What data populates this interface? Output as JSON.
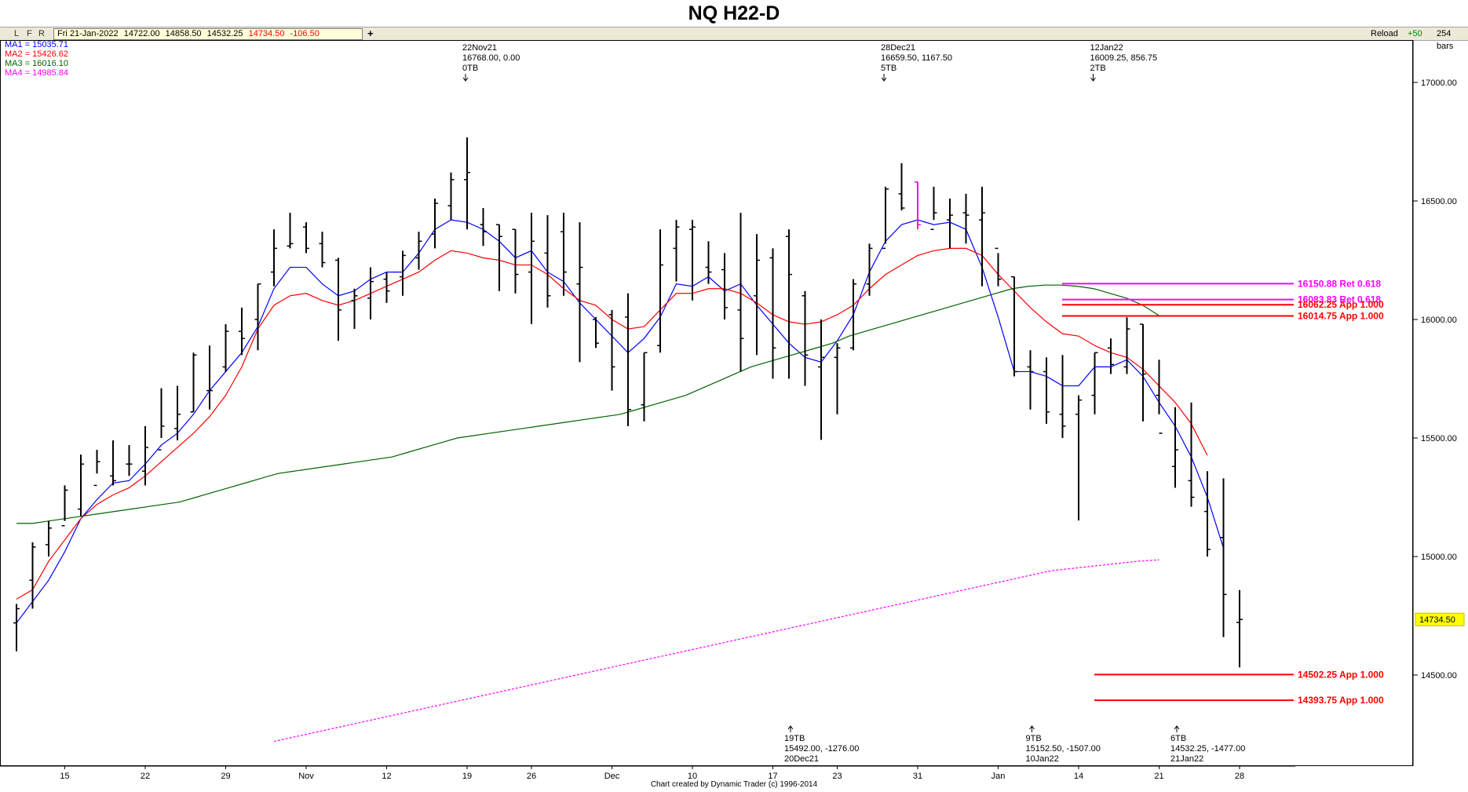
{
  "header": {
    "title": "NQ H22-D"
  },
  "toolbar": {
    "l": "L",
    "f": "F",
    "r": "R",
    "date": "Fri 21-Jan-2022",
    "open": "14722.00",
    "high": "14858.50",
    "low": "14532.25",
    "close": "14734.50",
    "change": "-106.50",
    "add": "+",
    "reload": "Reload",
    "step": "+50",
    "bars": "254 bars"
  },
  "ma_legend": [
    {
      "label": "MA1 = 15035.71",
      "color": "#0000ff"
    },
    {
      "label": "MA2 = 15426.62",
      "color": "#ff0000"
    },
    {
      "label": "MA3 = 16016.10",
      "color": "#006400"
    },
    {
      "label": "MA4 = 14985.84",
      "color": "#ff00ff"
    }
  ],
  "footer": {
    "credit": "Chart created by Dynamic Trader (c) 1996-2014"
  },
  "chart_data": {
    "type": "ohlc",
    "title": "NQ H22-D",
    "ylim": [
      14130,
      17200
    ],
    "y_ticks": [
      14500,
      15000,
      15500,
      16000,
      16500,
      17000
    ],
    "y_tick_labels": [
      "14500.00",
      "15000.00",
      "15500.00",
      "16000.00",
      "16500.00",
      "17000.00"
    ],
    "x_labels": [
      {
        "label": "15",
        "bar": 3
      },
      {
        "label": "22",
        "bar": 8
      },
      {
        "label": "29",
        "bar": 13
      },
      {
        "label": "Nov",
        "bar": 18
      },
      {
        "label": "12",
        "bar": 23
      },
      {
        "label": "19",
        "bar": 28
      },
      {
        "label": "26",
        "bar": 32
      },
      {
        "label": "Dec",
        "bar": 37
      },
      {
        "label": "10",
        "bar": 42
      },
      {
        "label": "17",
        "bar": 47
      },
      {
        "label": "23",
        "bar": 51
      },
      {
        "label": "31",
        "bar": 56
      },
      {
        "label": "Jan",
        "bar": 61
      },
      {
        "label": "14",
        "bar": 66
      },
      {
        "label": "21",
        "bar": 71
      },
      {
        "label": "28",
        "bar": 76
      }
    ],
    "current_price": "14734.50",
    "bars": [
      [
        14720,
        14800,
        14600,
        14780
      ],
      [
        14900,
        15060,
        14780,
        15040
      ],
      [
        15050,
        15150,
        15000,
        15120
      ],
      [
        15130,
        15300,
        15150,
        15280
      ],
      [
        15200,
        15430,
        15170,
        15390
      ],
      [
        15300,
        15450,
        15350,
        15400
      ],
      [
        15340,
        15490,
        15300,
        15320
      ],
      [
        15390,
        15470,
        15340,
        15390
      ],
      [
        15360,
        15550,
        15300,
        15460
      ],
      [
        15450,
        15710,
        15500,
        15550
      ],
      [
        15540,
        15720,
        15490,
        15600
      ],
      [
        15610,
        15860,
        15610,
        15850
      ],
      [
        15700,
        15890,
        15620,
        15700
      ],
      [
        15800,
        15980,
        15780,
        15950
      ],
      [
        15950,
        16050,
        15850,
        15920
      ],
      [
        16000,
        16150,
        15870,
        16150
      ],
      [
        16200,
        16380,
        16140,
        16300
      ],
      [
        16310,
        16450,
        16300,
        16320
      ],
      [
        16390,
        16410,
        16280,
        16300
      ],
      [
        16320,
        16370,
        16220,
        16240
      ],
      [
        16250,
        16260,
        15910,
        16040
      ],
      [
        16080,
        16130,
        15960,
        16100
      ],
      [
        16090,
        16220,
        16000,
        16160
      ],
      [
        16170,
        16200,
        16070,
        16120
      ],
      [
        16180,
        16290,
        16100,
        16270
      ],
      [
        16260,
        16370,
        16210,
        16330
      ],
      [
        16360,
        16510,
        16300,
        16490
      ],
      [
        16480,
        16620,
        16420,
        16590
      ],
      [
        16590,
        16768,
        16380,
        16620
      ],
      [
        16400,
        16470,
        16310,
        16370
      ],
      [
        16400,
        16400,
        16120,
        16350
      ],
      [
        16380,
        16380,
        16110,
        16190
      ],
      [
        16200,
        16450,
        15980,
        16330
      ],
      [
        16280,
        16440,
        16050,
        16100
      ],
      [
        16370,
        16450,
        16100,
        16200
      ],
      [
        16150,
        16410,
        15820,
        16220
      ],
      [
        16000,
        16010,
        15880,
        15900
      ],
      [
        16020,
        16040,
        15700,
        15800
      ],
      [
        16010,
        16110,
        15550,
        15620
      ],
      [
        15640,
        15860,
        15570,
        15860
      ],
      [
        15890,
        16380,
        15860,
        16230
      ],
      [
        16300,
        16420,
        16160,
        16390
      ],
      [
        16380,
        16420,
        16080,
        16390
      ],
      [
        16220,
        16330,
        16150,
        16200
      ],
      [
        16210,
        16280,
        16000,
        16050
      ],
      [
        16040,
        16450,
        15780,
        15920
      ],
      [
        16100,
        16360,
        15850,
        16250
      ],
      [
        16260,
        16300,
        15750,
        15880
      ],
      [
        16350,
        16380,
        15750,
        16190
      ],
      [
        16100,
        16120,
        15720,
        15850
      ],
      [
        15800,
        16000,
        15492,
        15840
      ],
      [
        15840,
        15900,
        15600,
        15880
      ],
      [
        15880,
        16170,
        15870,
        16150
      ],
      [
        16150,
        16320,
        16100,
        16300
      ],
      [
        16300,
        16560,
        16320,
        16550
      ],
      [
        16530,
        16659.5,
        16460,
        16470
      ],
      [
        16580,
        16580,
        16380,
        16400
      ],
      [
        16380,
        16560,
        16420,
        16450
      ],
      [
        16420,
        16510,
        16300,
        16440
      ],
      [
        16450,
        16530,
        16320,
        16440
      ],
      [
        16420,
        16560,
        16140,
        16450
      ],
      [
        16300,
        16280,
        16140,
        16170
      ],
      [
        16180,
        16180,
        15760,
        15780
      ],
      [
        15800,
        15870,
        15620,
        15780
      ],
      [
        15780,
        15840,
        15560,
        15610
      ],
      [
        15600,
        15850,
        15500,
        15550
      ],
      [
        15600,
        15680,
        15152.5,
        15660
      ],
      [
        15680,
        15860,
        15600,
        15860
      ],
      [
        15880,
        15920,
        15770,
        15810
      ],
      [
        15800,
        16009.25,
        15770,
        15960
      ],
      [
        15980,
        15980,
        15570,
        15770
      ],
      [
        15680,
        15830,
        15600,
        15520
      ],
      [
        15380,
        15630,
        15290,
        15450
      ],
      [
        15320,
        15650,
        15210,
        15250
      ],
      [
        15190,
        15360,
        15000,
        15030
      ],
      [
        15080,
        15330,
        14660,
        14840
      ],
      [
        14722,
        14858.5,
        14532.25,
        14734.5
      ]
    ],
    "series": [
      {
        "name": "MA1",
        "color": "#0000ff",
        "values": [
          14720,
          14810,
          14900,
          15020,
          15160,
          15240,
          15310,
          15320,
          15390,
          15470,
          15520,
          15600,
          15700,
          15780,
          15860,
          15970,
          16130,
          16220,
          16220,
          16150,
          16100,
          16120,
          16170,
          16200,
          16200,
          16280,
          16380,
          16420,
          16410,
          16380,
          16330,
          16260,
          16290,
          16200,
          16160,
          16070,
          16000,
          15930,
          15860,
          15920,
          16010,
          16150,
          16140,
          16180,
          16120,
          16150,
          16060,
          15980,
          15900,
          15840,
          15820,
          15910,
          16020,
          16200,
          16330,
          16400,
          16420,
          16400,
          16410,
          16380,
          16220,
          16010,
          15780,
          15780,
          15760,
          15720,
          15720,
          15800,
          15800,
          15830,
          15760,
          15650,
          15550,
          15420,
          15250,
          15035.71
        ]
      },
      {
        "name": "MA2",
        "color": "#ff0000",
        "values": [
          14820,
          14860,
          14980,
          15070,
          15160,
          15220,
          15260,
          15290,
          15340,
          15400,
          15460,
          15520,
          15590,
          15680,
          15800,
          15960,
          16060,
          16100,
          16110,
          16080,
          16060,
          16080,
          16110,
          16140,
          16170,
          16200,
          16250,
          16290,
          16280,
          16260,
          16250,
          16230,
          16230,
          16190,
          16130,
          16080,
          16060,
          16000,
          15960,
          15970,
          16040,
          16110,
          16110,
          16130,
          16130,
          16110,
          16070,
          16020,
          15990,
          15980,
          15990,
          16020,
          16060,
          16130,
          16190,
          16230,
          16270,
          16290,
          16300,
          16300,
          16270,
          16190,
          16120,
          16050,
          15990,
          15940,
          15930,
          15890,
          15860,
          15840,
          15790,
          15720,
          15650,
          15560,
          15426.62
        ]
      },
      {
        "name": "MA3",
        "color": "#006400",
        "values": [
          15140,
          15140,
          15150,
          15160,
          15170,
          15180,
          15190,
          15200,
          15210,
          15220,
          15230,
          15250,
          15270,
          15290,
          15310,
          15330,
          15350,
          15360,
          15370,
          15380,
          15390,
          15400,
          15410,
          15420,
          15440,
          15460,
          15480,
          15500,
          15510,
          15520,
          15530,
          15540,
          15550,
          15560,
          15570,
          15580,
          15590,
          15600,
          15620,
          15640,
          15660,
          15680,
          15710,
          15740,
          15770,
          15800,
          15820,
          15840,
          15860,
          15880,
          15900,
          15930,
          15950,
          15970,
          15990,
          16010,
          16030,
          16050,
          16070,
          16090,
          16110,
          16130,
          16140,
          16145,
          16145,
          16140,
          16130,
          16110,
          16090,
          16060,
          16016.1
        ]
      },
      {
        "name": "MA4",
        "color": "#ff00ff",
        "values": [
          14220,
          14240,
          14260,
          14280,
          14300,
          14320,
          14340,
          14360,
          14380,
          14400,
          14420,
          14440,
          14460,
          14480,
          14500,
          14520,
          14540,
          14560,
          14580,
          14600,
          14620,
          14640,
          14660,
          14680,
          14700,
          14720,
          14740,
          14760,
          14780,
          14800,
          14820,
          14840,
          14860,
          14880,
          14900,
          14920,
          14940,
          14950,
          14960,
          14970,
          14980,
          14985.84
        ]
      }
    ],
    "levels": [
      {
        "price": 16150.88,
        "label": "16150.88 Ret 0.618",
        "color": "#ff00ff",
        "bar_start": 64,
        "bar_end": 77
      },
      {
        "price": 16083.83,
        "label": "16083.83 Ret 0.618",
        "color": "#ff00ff",
        "bar_start": 64,
        "bar_end": 77
      },
      {
        "price": 16062.25,
        "label": "16062.25 App 1.000",
        "color": "#ff0000",
        "bar_start": 64,
        "bar_end": 77
      },
      {
        "price": 16014.75,
        "label": "16014.75 App 1.000",
        "color": "#ff0000",
        "bar_start": 64,
        "bar_end": 77
      },
      {
        "price": 14502.25,
        "label": "14502.25 App 1.000",
        "color": "#ff0000",
        "bar_start": 66,
        "bar_end": 77
      },
      {
        "price": 14393.75,
        "label": "14393.75 App 1.000",
        "color": "#ff0000",
        "bar_start": 66,
        "bar_end": 77
      }
    ],
    "pivots": [
      {
        "bar": 28,
        "kind": "top",
        "lines": [
          "22Nov21",
          "16768.00, 0.00",
          "0TB"
        ]
      },
      {
        "bar": 54,
        "kind": "top",
        "lines": [
          "28Dec21",
          "16659.50, 1167.50",
          "5TB"
        ]
      },
      {
        "bar": 67,
        "kind": "top",
        "lines": [
          "12Jan22",
          "16009.25, 856.75",
          "2TB"
        ]
      },
      {
        "bar": 48,
        "kind": "bottom",
        "lines": [
          "19TB",
          "15492.00, -1276.00",
          "20Dec21"
        ]
      },
      {
        "bar": 63,
        "kind": "bottom",
        "lines": [
          "9TB",
          "15152.50, -1507.00",
          "10Jan22"
        ]
      },
      {
        "bar": 72,
        "kind": "bottom",
        "lines": [
          "6TB",
          "14532.25, -1477.00",
          "21Jan22"
        ]
      }
    ]
  }
}
